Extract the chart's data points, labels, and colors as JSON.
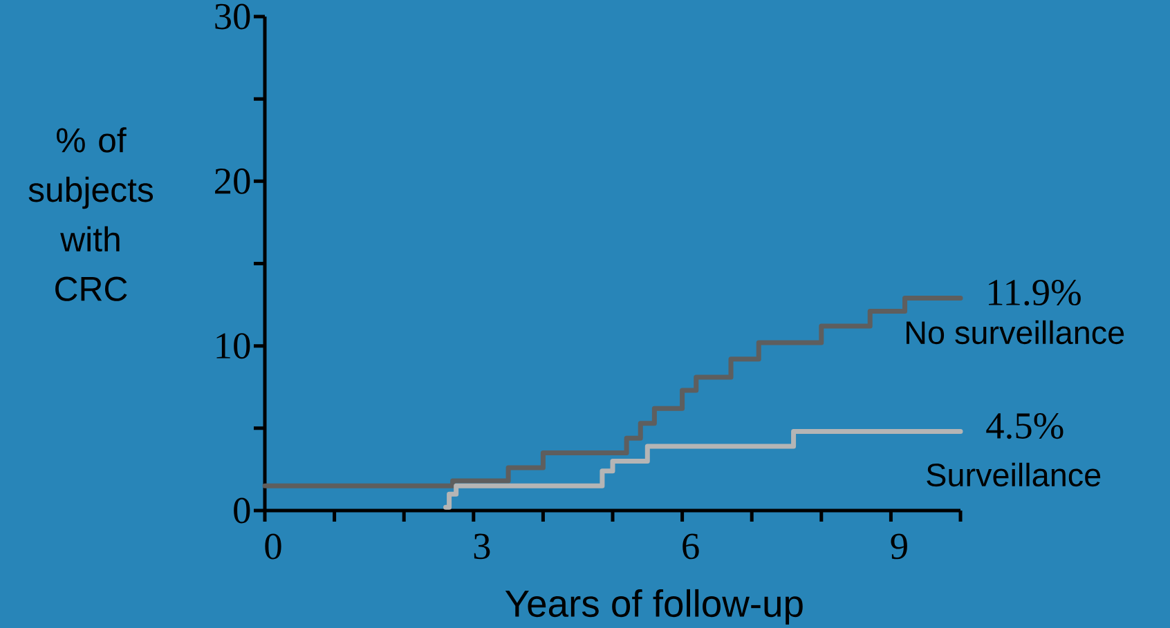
{
  "chart_data": {
    "type": "step",
    "xlabel": "Years of follow-up",
    "ylabel": "% of subjects with CRC",
    "xlim": [
      0,
      10
    ],
    "ylim": [
      0,
      30
    ],
    "xticks": [
      0,
      {
        "value": 1,
        "label": null
      },
      {
        "value": 2,
        "label": null
      },
      3,
      {
        "value": 4,
        "label": null
      },
      {
        "value": 5,
        "label": null
      },
      6,
      {
        "value": 7,
        "label": null
      },
      {
        "value": 8,
        "label": null
      },
      9,
      {
        "value": 10,
        "label": null
      }
    ],
    "yticks": [
      0,
      {
        "value": 5,
        "label": null
      },
      10,
      {
        "value": 15,
        "label": null
      },
      20,
      {
        "value": 25,
        "label": null
      },
      30
    ],
    "series": [
      {
        "name": "No surveillance",
        "color": "#5e5e5e",
        "x": [
          0,
          2.7,
          3.5,
          4.0,
          5.2,
          5.4,
          5.6,
          6.0,
          6.2,
          6.7,
          7.1,
          8.0,
          8.7,
          9.2,
          10
        ],
        "values": [
          1.5,
          1.8,
          2.6,
          3.5,
          4.4,
          5.3,
          6.2,
          7.3,
          8.1,
          9.2,
          10.2,
          11.2,
          12.1,
          12.9,
          12.9
        ]
      },
      {
        "name": "Surveillance",
        "color": "#b5b5b5",
        "x": [
          2.6,
          2.65,
          2.75,
          4.85,
          5.0,
          5.5,
          7.6,
          10
        ],
        "values": [
          0.2,
          1.0,
          1.5,
          2.4,
          3.0,
          3.9,
          4.8,
          4.8
        ]
      }
    ],
    "annotations": [
      {
        "text": "11.9%",
        "x": 10,
        "y": 12.9
      },
      {
        "text": "4.5%",
        "x": 10,
        "y": 4.8
      }
    ]
  }
}
